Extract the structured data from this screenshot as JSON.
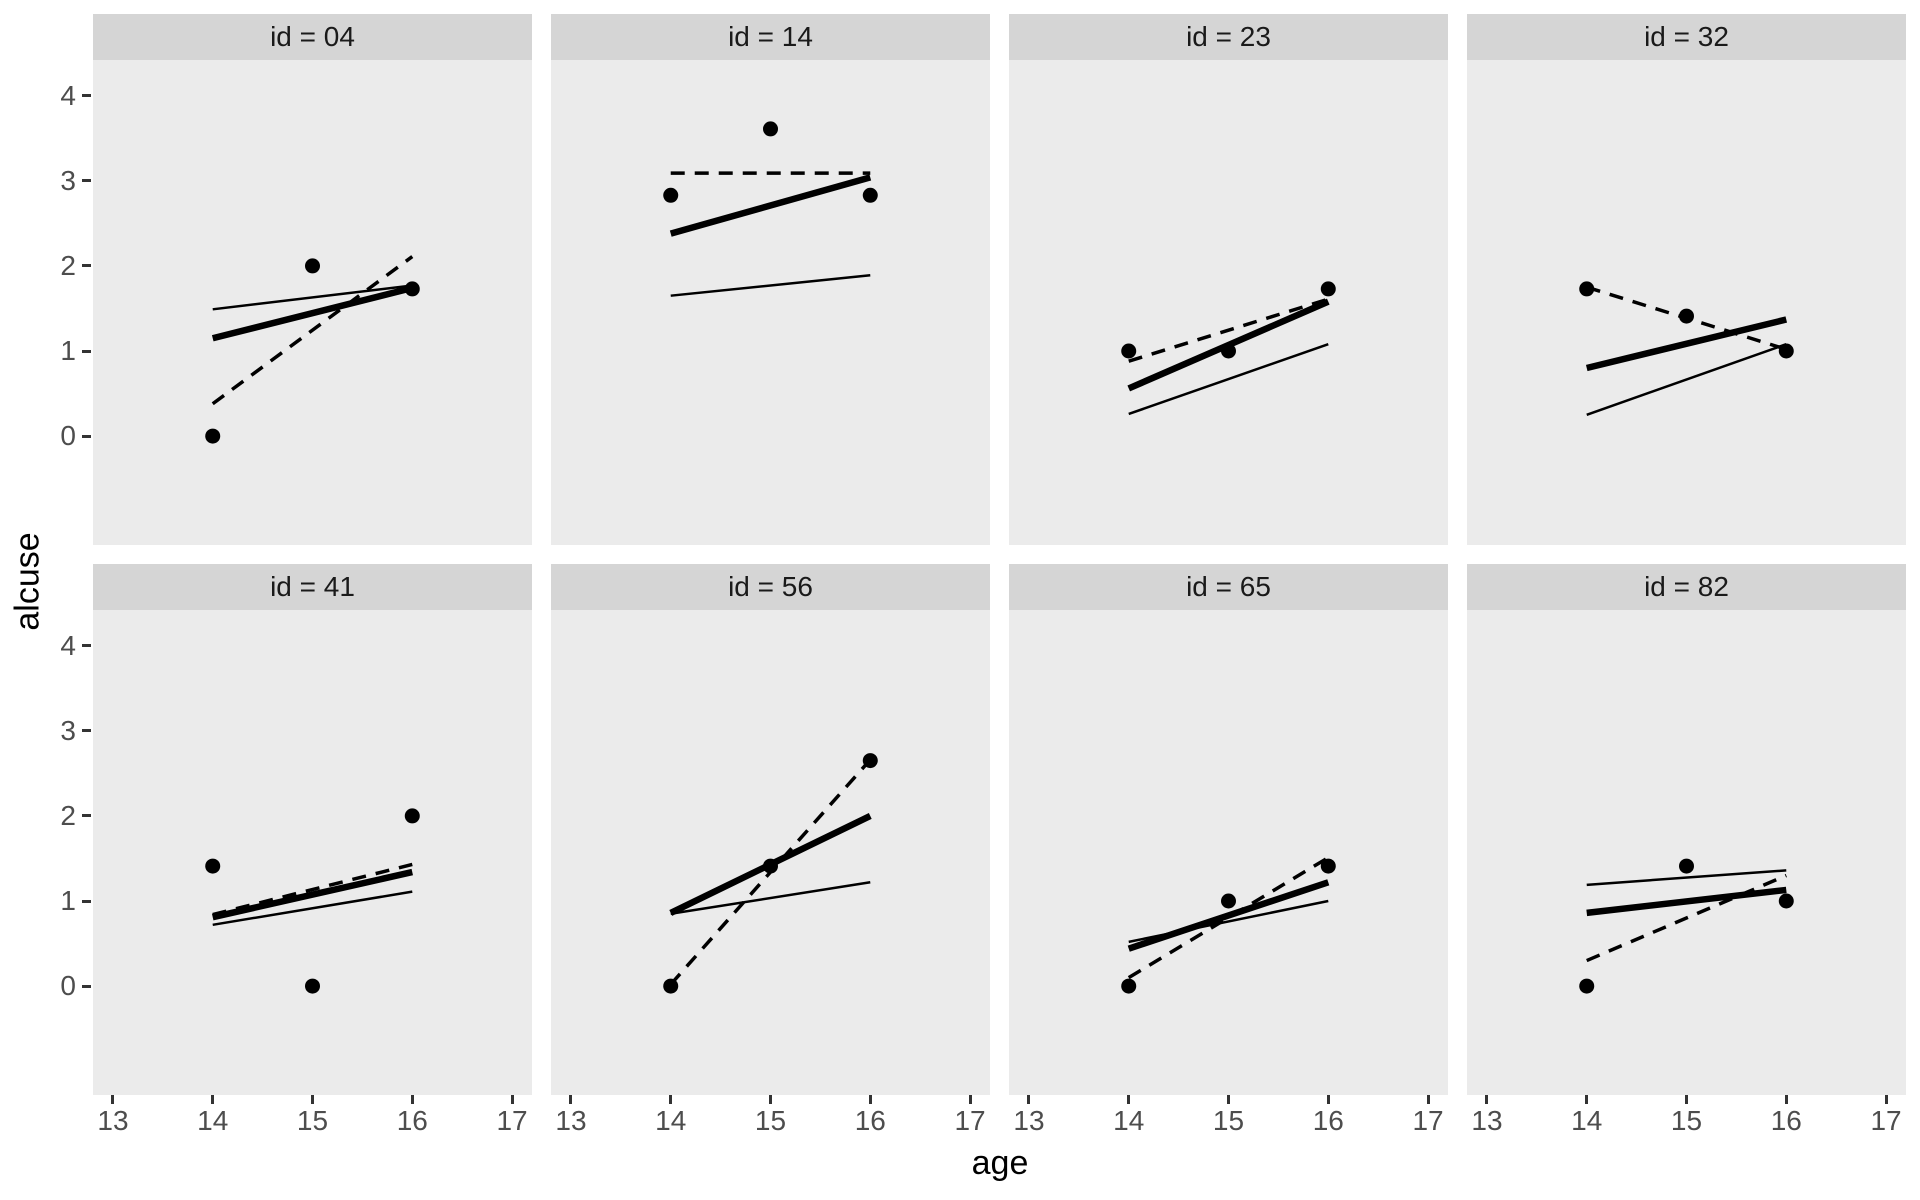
{
  "chart_data": {
    "type": "scatter",
    "title": "",
    "xlabel": "age",
    "ylabel": "alcuse",
    "x_ticks": [
      13,
      14,
      15,
      16,
      17
    ],
    "y_ticks": [
      4,
      3,
      2,
      1,
      0
    ],
    "x_range": [
      12.8,
      17.2
    ],
    "y_range": [
      -1.28,
      4.42
    ],
    "grid": false,
    "legend": "none",
    "facet_variable": "id",
    "facets": [
      {
        "label": "id = 04",
        "points": [
          [
            14,
            0
          ],
          [
            15,
            2
          ],
          [
            16,
            1.73
          ]
        ],
        "lines": {
          "ols_dashed": [
            [
              14,
              0.38
            ],
            [
              16,
              2.11
            ]
          ],
          "fitted_thick": [
            [
              14,
              1.15
            ],
            [
              16,
              1.74
            ]
          ],
          "population_thin": [
            [
              14,
              1.49
            ],
            [
              16,
              1.77
            ]
          ]
        }
      },
      {
        "label": "id = 14",
        "points": [
          [
            14,
            2.83
          ],
          [
            15,
            3.61
          ],
          [
            16,
            2.83
          ]
        ],
        "lines": {
          "ols_dashed": [
            [
              14,
              3.09
            ],
            [
              16,
              3.09
            ]
          ],
          "fitted_thick": [
            [
              14,
              2.38
            ],
            [
              16,
              3.04
            ]
          ],
          "population_thin": [
            [
              14,
              1.65
            ],
            [
              16,
              1.89
            ]
          ]
        }
      },
      {
        "label": "id = 23",
        "points": [
          [
            14,
            1
          ],
          [
            15,
            1
          ],
          [
            16,
            1.73
          ]
        ],
        "lines": {
          "ols_dashed": [
            [
              14,
              0.88
            ],
            [
              16,
              1.61
            ]
          ],
          "fitted_thick": [
            [
              14,
              0.56
            ],
            [
              16,
              1.58
            ]
          ],
          "population_thin": [
            [
              14,
              0.26
            ],
            [
              16,
              1.08
            ]
          ]
        }
      },
      {
        "label": "id = 32",
        "points": [
          [
            14,
            1.73
          ],
          [
            15,
            1.41
          ],
          [
            16,
            1
          ]
        ],
        "lines": {
          "ols_dashed": [
            [
              14,
              1.75
            ],
            [
              16,
              1.02
            ]
          ],
          "fitted_thick": [
            [
              14,
              0.8
            ],
            [
              16,
              1.37
            ]
          ],
          "population_thin": [
            [
              14,
              0.25
            ],
            [
              16,
              1.08
            ]
          ]
        }
      },
      {
        "label": "id = 41",
        "points": [
          [
            14,
            1.41
          ],
          [
            15,
            0
          ],
          [
            16,
            2
          ]
        ],
        "lines": {
          "ols_dashed": [
            [
              14,
              0.84
            ],
            [
              16,
              1.43
            ]
          ],
          "fitted_thick": [
            [
              14,
              0.81
            ],
            [
              16,
              1.34
            ]
          ],
          "population_thin": [
            [
              14,
              0.72
            ],
            [
              16,
              1.11
            ]
          ]
        }
      },
      {
        "label": "id = 56",
        "points": [
          [
            14,
            0
          ],
          [
            15,
            1.41
          ],
          [
            16,
            2.65
          ]
        ],
        "lines": {
          "ols_dashed": [
            [
              14,
              0.02
            ],
            [
              16,
              2.66
            ]
          ],
          "fitted_thick": [
            [
              14,
              0.86
            ],
            [
              16,
              2.0
            ]
          ],
          "population_thin": [
            [
              14,
              0.85
            ],
            [
              16,
              1.22
            ]
          ]
        }
      },
      {
        "label": "id = 65",
        "points": [
          [
            14,
            0
          ],
          [
            15,
            1
          ],
          [
            16,
            1.41
          ]
        ],
        "lines": {
          "ols_dashed": [
            [
              14,
              0.1
            ],
            [
              16,
              1.51
            ]
          ],
          "fitted_thick": [
            [
              14,
              0.44
            ],
            [
              16,
              1.22
            ]
          ],
          "population_thin": [
            [
              14,
              0.52
            ],
            [
              16,
              1.0
            ]
          ]
        }
      },
      {
        "label": "id = 82",
        "points": [
          [
            14,
            0
          ],
          [
            15,
            1.41
          ],
          [
            16,
            1
          ]
        ],
        "lines": {
          "ols_dashed": [
            [
              14,
              0.3
            ],
            [
              16,
              1.3
            ]
          ],
          "fitted_thick": [
            [
              14,
              0.86
            ],
            [
              16,
              1.13
            ]
          ],
          "population_thin": [
            [
              14,
              1.19
            ],
            [
              16,
              1.36
            ]
          ]
        }
      }
    ]
  },
  "styles": {
    "panel_bg": "#EBEBEB",
    "strip_bg": "#D5D5D5",
    "strip_text": "#1A1A1A",
    "axis_text": "#4D4D4D",
    "axis_title": "#000000",
    "tick_mark": "#333333",
    "data_color": "#000000"
  }
}
